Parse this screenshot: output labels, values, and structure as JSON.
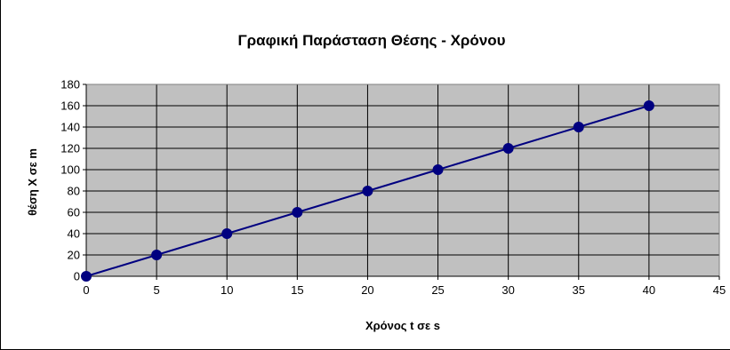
{
  "chart_data": {
    "type": "line",
    "title": "Γραφική Παράσταση  Θέσης - Χρόνου",
    "xlabel": "Χρόνος  t  σε  s",
    "ylabel": "θέση  X  σε  m",
    "xlim": [
      0,
      45
    ],
    "ylim": [
      0,
      180
    ],
    "x_ticks": [
      0,
      5,
      10,
      15,
      20,
      25,
      30,
      35,
      40,
      45
    ],
    "y_ticks": [
      0,
      20,
      40,
      60,
      80,
      100,
      120,
      140,
      160,
      180
    ],
    "grid": true,
    "legend": "none",
    "colors": {
      "plot_background": "#c0c0c0",
      "series": "#000080",
      "grid": "#000000"
    },
    "series": [
      {
        "x": [
          0,
          5,
          10,
          15,
          20,
          25,
          30,
          35,
          40
        ],
        "y": [
          0,
          20,
          40,
          60,
          80,
          100,
          120,
          140,
          160
        ]
      }
    ]
  }
}
